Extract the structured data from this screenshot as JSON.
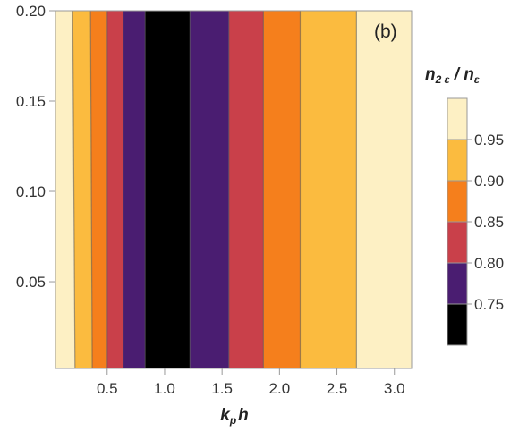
{
  "chart_data": {
    "type": "contour",
    "panel_label": "(b)",
    "xlabel": {
      "main": "k",
      "sub": "p",
      "tail": "h"
    },
    "legend_title": {
      "a": "n",
      "a_sub": "2 ε",
      "sep": " / ",
      "b": "n",
      "b_sub": "ε"
    },
    "xlim": [
      0.05,
      3.15
    ],
    "ylim": [
      0.002,
      0.2
    ],
    "x_ticks": [
      0.5,
      1.0,
      1.5,
      2.0,
      2.5,
      3.0
    ],
    "x_tick_labels": [
      "0.5",
      "1.0",
      "1.5",
      "2.0",
      "2.5",
      "3.0"
    ],
    "y_ticks": [
      0.05,
      0.1,
      0.15,
      0.2
    ],
    "y_tick_labels": [
      "0.05",
      "0.10",
      "0.15",
      "0.20"
    ],
    "grid": false,
    "legend_placement": "right",
    "levels": [
      0.75,
      0.8,
      0.85,
      0.9,
      0.95
    ],
    "level_labels": [
      "0.75",
      "0.80",
      "0.85",
      "0.90",
      "0.95"
    ],
    "level_colors": [
      "#000000",
      "#4a1d71",
      "#c9404a",
      "#f57f1c",
      "#fbbb3f",
      "#fdf0c4"
    ],
    "bands": [
      {
        "x0": 0.05,
        "x1": 0.22,
        "color": "#fdf0c4"
      },
      {
        "x0": 0.22,
        "x1": 0.37,
        "color": "#fbbb3f"
      },
      {
        "x0": 0.37,
        "x1": 0.5,
        "color": "#f57f1c"
      },
      {
        "x0": 0.5,
        "x1": 0.64,
        "color": "#c9404a"
      },
      {
        "x0": 0.64,
        "x1": 0.83,
        "color": "#4a1d71"
      },
      {
        "x0": 0.83,
        "x1": 1.22,
        "color": "#000000"
      },
      {
        "x0": 1.22,
        "x1": 1.56,
        "color": "#4a1d71"
      },
      {
        "x0": 1.56,
        "x1": 1.86,
        "color": "#c9404a"
      },
      {
        "x0": 1.86,
        "x1": 2.18,
        "color": "#f57f1c"
      },
      {
        "x0": 2.18,
        "x1": 2.67,
        "color": "#fbbb3f"
      },
      {
        "x0": 2.67,
        "x1": 3.15,
        "color": "#fdf0c4"
      }
    ]
  }
}
